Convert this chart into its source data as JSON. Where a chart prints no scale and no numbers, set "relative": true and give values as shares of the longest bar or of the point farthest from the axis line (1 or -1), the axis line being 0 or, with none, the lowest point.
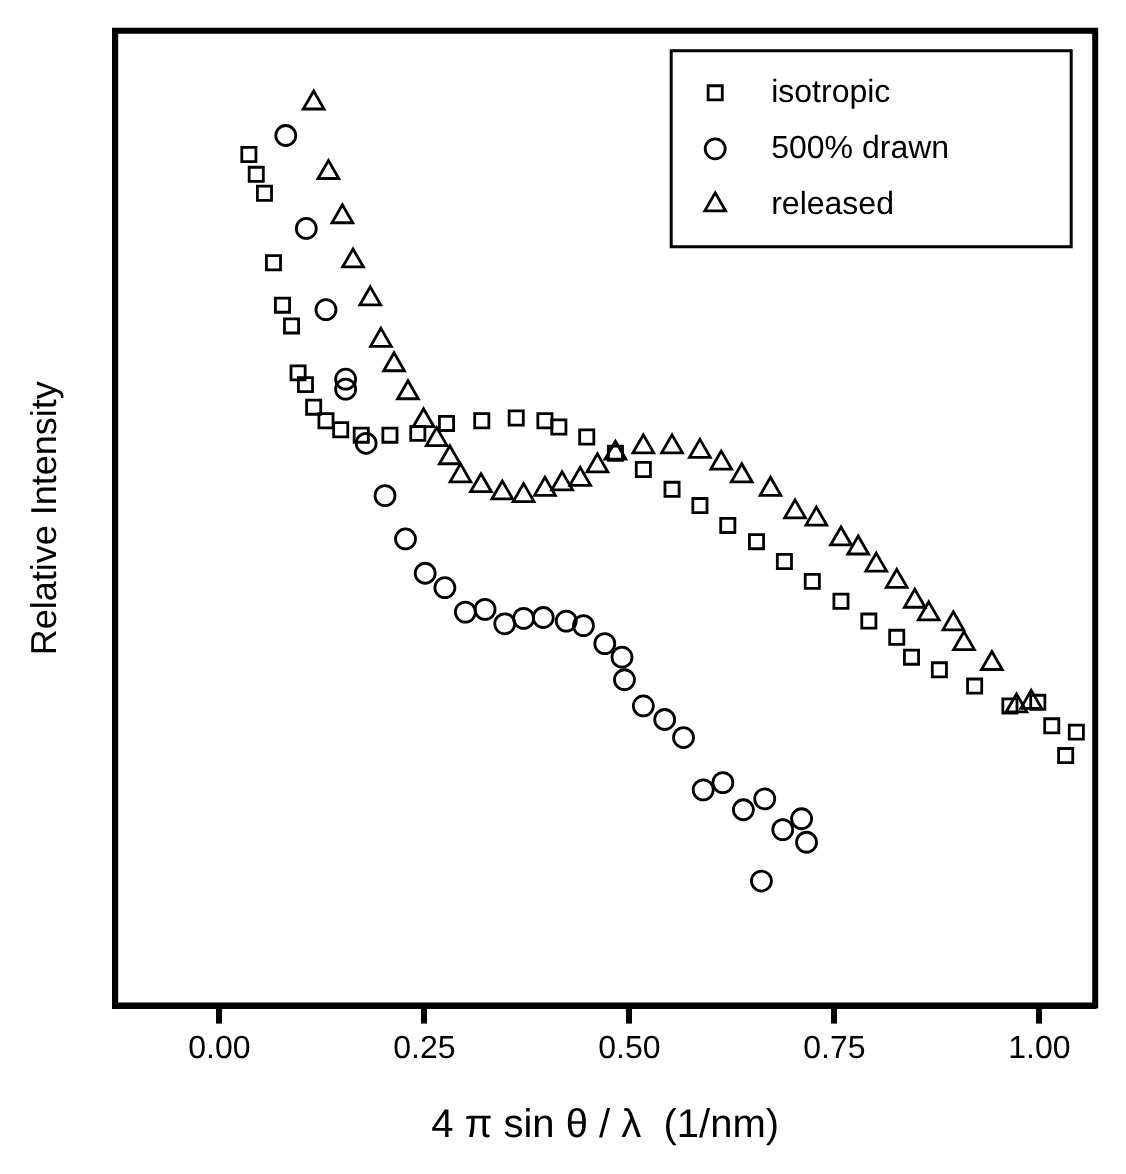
{
  "chart_data": {
    "type": "scatter",
    "relative": true,
    "xlabel": "4 π sin θ / λ  (1/nm)",
    "ylabel": "Relative Intensity",
    "xlim": [
      -0.127,
      1.068
    ],
    "xticks": [
      {
        "value": 0,
        "label": "0.00"
      },
      {
        "value": 0.25,
        "label": "0.25"
      },
      {
        "value": 0.5,
        "label": "0.50"
      },
      {
        "value": 0.75,
        "label": "0.75"
      },
      {
        "value": 1,
        "label": "1.00"
      }
    ],
    "grid": false,
    "legend": "top right",
    "series": [
      {
        "name": "isotropic",
        "color": "#000000",
        "marker": "square",
        "x": [
          0.036,
          0.045,
          0.055,
          0.066,
          0.077,
          0.088,
          0.096,
          0.105,
          0.115,
          0.13,
          0.148,
          0.173,
          0.208,
          0.242,
          0.277,
          0.32,
          0.362,
          0.397,
          0.414,
          0.448,
          0.483,
          0.517,
          0.552,
          0.586,
          0.62,
          0.655,
          0.689,
          0.723,
          0.758,
          0.792,
          0.826,
          0.844,
          0.878,
          0.921,
          0.964,
          0.998,
          1.015,
          1.032,
          1.045
        ],
        "values": [
          0.943,
          0.921,
          0.9,
          0.823,
          0.776,
          0.753,
          0.701,
          0.688,
          0.663,
          0.648,
          0.638,
          0.632,
          0.632,
          0.634,
          0.645,
          0.648,
          0.651,
          0.648,
          0.641,
          0.63,
          0.612,
          0.594,
          0.572,
          0.554,
          0.532,
          0.514,
          0.492,
          0.47,
          0.448,
          0.426,
          0.408,
          0.386,
          0.372,
          0.354,
          0.332,
          0.336,
          0.31,
          0.277,
          0.303
        ]
      },
      {
        "name": "500% drawn",
        "color": "#000000",
        "marker": "circle",
        "x": [
          0.081,
          0.106,
          0.13,
          0.154,
          0.154,
          0.179,
          0.202,
          0.227,
          0.251,
          0.275,
          0.3,
          0.324,
          0.348,
          0.371,
          0.395,
          0.423,
          0.444,
          0.47,
          0.491,
          0.494,
          0.517,
          0.543,
          0.566,
          0.59,
          0.614,
          0.639,
          0.661,
          0.665,
          0.687,
          0.71,
          0.716
        ],
        "values": [
          0.964,
          0.861,
          0.771,
          0.694,
          0.683,
          0.623,
          0.565,
          0.517,
          0.479,
          0.463,
          0.436,
          0.439,
          0.423,
          0.429,
          0.43,
          0.426,
          0.421,
          0.401,
          0.386,
          0.361,
          0.332,
          0.317,
          0.297,
          0.239,
          0.247,
          0.217,
          0.138,
          0.229,
          0.195,
          0.207,
          0.181
        ]
      },
      {
        "name": "released",
        "color": "#000000",
        "marker": "triangle",
        "x": [
          0.115,
          0.133,
          0.15,
          0.163,
          0.184,
          0.197,
          0.213,
          0.23,
          0.249,
          0.265,
          0.281,
          0.294,
          0.319,
          0.345,
          0.371,
          0.397,
          0.418,
          0.44,
          0.461,
          0.483,
          0.517,
          0.552,
          0.586,
          0.612,
          0.637,
          0.672,
          0.702,
          0.728,
          0.758,
          0.779,
          0.801,
          0.826,
          0.848,
          0.865,
          0.895,
          0.908,
          0.942,
          0.972,
          0.99
        ],
        "values": [
          1,
          0.923,
          0.874,
          0.825,
          0.783,
          0.737,
          0.71,
          0.679,
          0.648,
          0.627,
          0.607,
          0.587,
          0.576,
          0.568,
          0.565,
          0.572,
          0.578,
          0.583,
          0.598,
          0.612,
          0.619,
          0.619,
          0.614,
          0.601,
          0.587,
          0.572,
          0.547,
          0.539,
          0.517,
          0.507,
          0.488,
          0.47,
          0.448,
          0.434,
          0.423,
          0.401,
          0.379,
          0.332,
          0.336
        ]
      }
    ]
  }
}
